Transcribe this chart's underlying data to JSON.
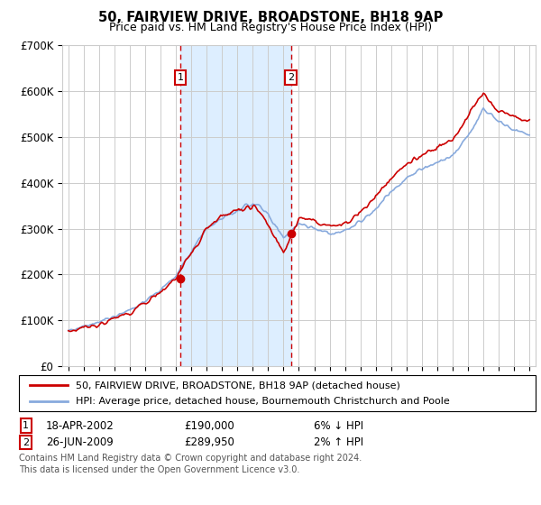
{
  "title": "50, FAIRVIEW DRIVE, BROADSTONE, BH18 9AP",
  "subtitle": "Price paid vs. HM Land Registry's House Price Index (HPI)",
  "ylim": [
    0,
    700000
  ],
  "yticks": [
    0,
    100000,
    200000,
    300000,
    400000,
    500000,
    600000,
    700000
  ],
  "ytick_labels": [
    "£0",
    "£100K",
    "£200K",
    "£300K",
    "£400K",
    "£500K",
    "£600K",
    "£700K"
  ],
  "xlim_start": 1994.6,
  "xlim_end": 2025.4,
  "purchase1_year": 2002.29,
  "purchase1_price": 190000,
  "purchase1_label": "1",
  "purchase1_date": "18-APR-2002",
  "purchase1_hpi_rel": "6% ↓ HPI",
  "purchase2_year": 2009.49,
  "purchase2_price": 289950,
  "purchase2_label": "2",
  "purchase2_date": "26-JUN-2009",
  "purchase2_hpi_rel": "2% ↑ HPI",
  "line1_color": "#cc0000",
  "line2_color": "#88aadd",
  "shade_color": "#ddeeff",
  "grid_color": "#cccccc",
  "background_color": "#ffffff",
  "legend_label1": "50, FAIRVIEW DRIVE, BROADSTONE, BH18 9AP (detached house)",
  "legend_label2": "HPI: Average price, detached house, Bournemouth Christchurch and Poole",
  "footer1": "Contains HM Land Registry data © Crown copyright and database right 2024.",
  "footer2": "This data is licensed under the Open Government Licence v3.0.",
  "purchase1_price_str": "£190,000",
  "purchase2_price_str": "£289,950"
}
